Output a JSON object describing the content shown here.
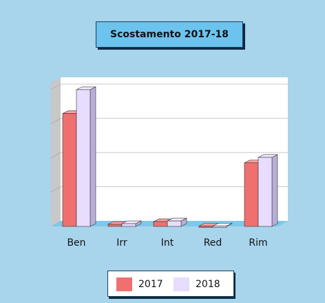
{
  "chart_data": {
    "type": "bar",
    "title": "Scostamento 2017-18",
    "categories": [
      "Ben",
      "Irr",
      "Int",
      "Red",
      "Rim"
    ],
    "series": [
      {
        "name": "2017",
        "values": [
          165,
          3,
          7,
          0.5,
          93
        ]
      },
      {
        "name": "2018",
        "values": [
          200,
          4,
          8,
          0.5,
          101
        ]
      }
    ],
    "ylim": [
      0,
      210
    ],
    "grid": true,
    "legend": "bottom",
    "colors": {
      "series_2017": "#f07070",
      "series_2018": "#e8dcff",
      "background": "#a8d4ec",
      "floor": "#7ec8e8"
    }
  }
}
